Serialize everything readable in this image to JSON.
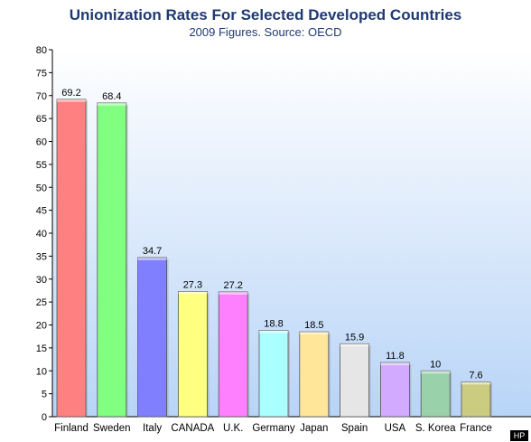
{
  "chart_data": {
    "type": "bar",
    "title": "Unionization Rates For Selected Developed Countries",
    "subtitle": "2009 Figures. Source: OECD",
    "xlabel": "",
    "ylabel": "",
    "ylim": [
      0,
      80
    ],
    "yticks": [
      0,
      5,
      10,
      15,
      20,
      25,
      30,
      35,
      40,
      45,
      50,
      55,
      60,
      65,
      70,
      75,
      80
    ],
    "grid": false,
    "legend": "none",
    "categories": [
      "Finland",
      "Sweden",
      "Italy",
      "CANADA",
      "U.K.",
      "Germany",
      "Japan",
      "Spain",
      "USA",
      "S. Korea",
      "France"
    ],
    "values": [
      69.2,
      68.4,
      34.7,
      27.3,
      27.2,
      18.8,
      18.5,
      15.9,
      11.8,
      10,
      7.6
    ],
    "value_labels": [
      "69.2",
      "68.4",
      "34.7",
      "27.3",
      "27.2",
      "18.8",
      "18.5",
      "15.9",
      "11.8",
      "10",
      "7.6"
    ],
    "colors": [
      "#ff8080",
      "#80ff80",
      "#8080ff",
      "#ffff80",
      "#ff80ff",
      "#aaffff",
      "#ffe699",
      "#e6e6e6",
      "#d2aaff",
      "#99d2aa",
      "#cccc80"
    ],
    "background_gradient": [
      "#ffffff",
      "#b8d4f7"
    ]
  },
  "badge": {
    "label": "HP"
  }
}
